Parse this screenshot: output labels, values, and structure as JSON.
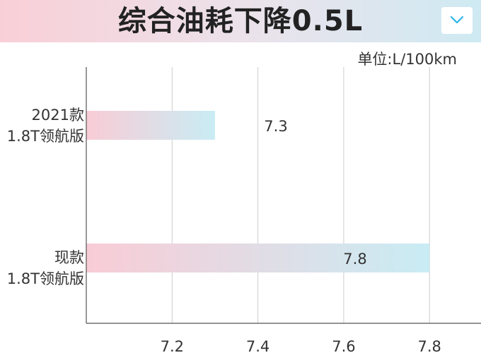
{
  "header": {
    "title": "综合油耗下降0.5L",
    "collapse_icon": "chevron-down-icon"
  },
  "colors": {
    "banner_start": "#f9cfd7",
    "banner_end": "#cfeaf3",
    "bar_start": "#f9ccd6",
    "bar_end": "#c9ecf4",
    "collapse_chevron": "#2bb5e8"
  },
  "chart_data": {
    "type": "bar",
    "orientation": "horizontal",
    "unit_label": "单位:L/100km",
    "categories": [
      {
        "line1": "2021款",
        "line2": "1.8T领航版"
      },
      {
        "line1": "现款",
        "line2": "1.8T领航版"
      }
    ],
    "values": [
      7.3,
      7.8
    ],
    "value_labels": [
      "7.3",
      "7.8"
    ],
    "x_ticks": [
      "7.2",
      "7.4",
      "7.6",
      "7.8"
    ],
    "x_tick_values": [
      7.2,
      7.4,
      7.6,
      7.8
    ],
    "xlim": [
      7.0,
      7.92
    ],
    "grid": true,
    "legend": "none"
  }
}
